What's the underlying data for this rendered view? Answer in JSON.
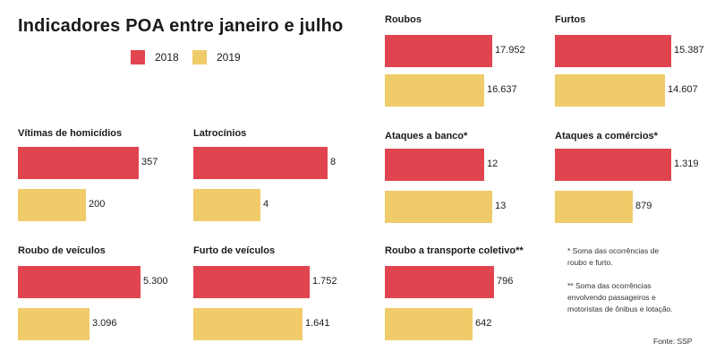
{
  "title": "Indicadores POA entre janeiro e julho",
  "legend": [
    {
      "label": "2018",
      "color": "#e0454f"
    },
    {
      "label": "2019",
      "color": "#f0cb6a"
    }
  ],
  "colors": {
    "y2018": "#e0454f",
    "y2019": "#f0cb6a"
  },
  "chart_data": [
    {
      "type": "bar",
      "title": "Roubos",
      "categories": [
        "2018",
        "2019"
      ],
      "values": [
        17952,
        16637
      ],
      "labels": [
        "17.952",
        "16.637"
      ]
    },
    {
      "type": "bar",
      "title": "Furtos",
      "categories": [
        "2018",
        "2019"
      ],
      "values": [
        15387,
        14607
      ],
      "labels": [
        "15.387",
        "14.607"
      ]
    },
    {
      "type": "bar",
      "title": "Vítimas de homicídios",
      "categories": [
        "2018",
        "2019"
      ],
      "values": [
        357,
        200
      ],
      "labels": [
        "357",
        "200"
      ]
    },
    {
      "type": "bar",
      "title": "Latrocínios",
      "categories": [
        "2018",
        "2019"
      ],
      "values": [
        8,
        4
      ],
      "labels": [
        "8",
        "4"
      ]
    },
    {
      "type": "bar",
      "title": "Ataques a banco*",
      "categories": [
        "2018",
        "2019"
      ],
      "values": [
        12,
        13
      ],
      "labels": [
        "12",
        "13"
      ]
    },
    {
      "type": "bar",
      "title": "Ataques a comércios*",
      "categories": [
        "2018",
        "2019"
      ],
      "values": [
        1319,
        879
      ],
      "labels": [
        "1.319",
        "879"
      ]
    },
    {
      "type": "bar",
      "title": "Roubo de veículos",
      "categories": [
        "2018",
        "2019"
      ],
      "values": [
        5300,
        3096
      ],
      "labels": [
        "5.300",
        "3.096"
      ]
    },
    {
      "type": "bar",
      "title": "Furto de veículos",
      "categories": [
        "2018",
        "2019"
      ],
      "values": [
        1752,
        1641
      ],
      "labels": [
        "1.752",
        "1.641"
      ]
    },
    {
      "type": "bar",
      "title": "Roubo a transporte coletivo**",
      "categories": [
        "2018",
        "2019"
      ],
      "values": [
        796,
        642
      ],
      "labels": [
        "796",
        "642"
      ]
    }
  ],
  "notes": {
    "note1": "* Soma das ocorrências de roubo e furto.",
    "note2": "** Soma das ocorrências envolvendo passageiros e motoristas de ônibus e lotação."
  },
  "source": "Fonte: SSP"
}
